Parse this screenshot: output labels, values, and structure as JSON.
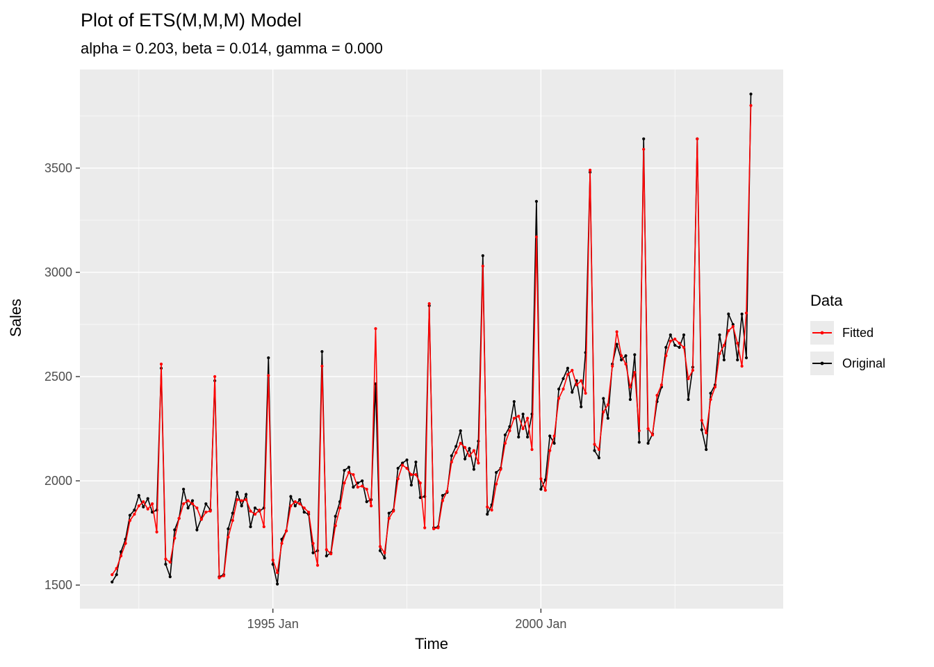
{
  "title": "Plot of ETS(M,M,M) Model",
  "subtitle": "alpha = 0.203, beta = 0.014, gamma = 0.000",
  "axes": {
    "x_label": "Time",
    "y_label": "Sales"
  },
  "legend": {
    "title": "Data",
    "entries": [
      {
        "label": "Fitted",
        "color": "#FF0000"
      },
      {
        "label": "Original",
        "color": "#000000"
      }
    ]
  },
  "colors": {
    "panel": "#EBEBEB",
    "grid": "#FFFFFF",
    "tick_text": "#4D4D4D",
    "tick_mark": "#333333",
    "fitted": "#FF0000",
    "original": "#000000",
    "legend_key": "#EBEBEB"
  },
  "chart_data": {
    "type": "line",
    "title": "Plot of ETS(M,M,M) Model",
    "subtitle": "alpha = 0.203, beta = 0.014, gamma = 0.000",
    "xlabel": "Time",
    "ylabel": "Sales",
    "x_description": "Monthly observations from Jan 1992 to Dec 2003, strong December seasonal peaks",
    "x_start_year": 1992,
    "frequency": "monthly",
    "xlim": [
      1991.4,
      2004.52
    ],
    "ylim": [
      1387,
      3973
    ],
    "x_ticks": [
      {
        "pos": 1995.0,
        "label": "1995 Jan"
      },
      {
        "pos": 2000.0,
        "label": "2000 Jan"
      }
    ],
    "x_minor": [
      1992.5,
      1997.5,
      2002.5
    ],
    "y_ticks": [
      1500,
      2000,
      2500,
      3000,
      3500
    ],
    "y_minor": [
      1750,
      2250,
      2750,
      3250,
      3750
    ],
    "grid": true,
    "legend_position": "right",
    "series": [
      {
        "name": "Fitted",
        "color": "#FF0000",
        "values": [
          1550,
          1580,
          1640,
          1700,
          1810,
          1840,
          1880,
          1900,
          1865,
          1890,
          1755,
          2560,
          1625,
          1610,
          1725,
          1820,
          1890,
          1905,
          1890,
          1870,
          1815,
          1850,
          1855,
          2500,
          1535,
          1545,
          1730,
          1810,
          1910,
          1905,
          1910,
          1855,
          1840,
          1860,
          1780,
          2505,
          1620,
          1560,
          1700,
          1760,
          1880,
          1900,
          1890,
          1870,
          1850,
          1700,
          1595,
          2550,
          1670,
          1650,
          1785,
          1870,
          1990,
          2040,
          2030,
          1970,
          1975,
          1960,
          1880,
          2730,
          1685,
          1655,
          1820,
          1855,
          2010,
          2075,
          2060,
          2030,
          2030,
          1990,
          1775,
          2850,
          1770,
          1775,
          1905,
          1950,
          2090,
          2135,
          2180,
          2160,
          2120,
          2145,
          2085,
          3030,
          1875,
          1860,
          1985,
          2055,
          2180,
          2240,
          2300,
          2310,
          2250,
          2300,
          2150,
          3170,
          2010,
          1955,
          2145,
          2215,
          2395,
          2440,
          2510,
          2530,
          2460,
          2480,
          2420,
          3490,
          2175,
          2150,
          2330,
          2365,
          2550,
          2715,
          2600,
          2560,
          2450,
          2520,
          2240,
          3590,
          2250,
          2220,
          2410,
          2460,
          2600,
          2670,
          2680,
          2660,
          2640,
          2490,
          2530,
          3640,
          2290,
          2230,
          2390,
          2450,
          2610,
          2650,
          2720,
          2740,
          2660,
          2550,
          2805,
          3800
        ]
      },
      {
        "name": "Original",
        "color": "#000000",
        "values": [
          1515,
          1550,
          1660,
          1720,
          1835,
          1860,
          1930,
          1875,
          1915,
          1850,
          1860,
          2540,
          1600,
          1540,
          1765,
          1820,
          1960,
          1870,
          1905,
          1765,
          1820,
          1890,
          1860,
          2480,
          1540,
          1550,
          1770,
          1845,
          1945,
          1880,
          1935,
          1780,
          1870,
          1855,
          1870,
          2590,
          1600,
          1505,
          1720,
          1760,
          1925,
          1880,
          1910,
          1850,
          1840,
          1655,
          1665,
          2620,
          1640,
          1655,
          1830,
          1900,
          2050,
          2065,
          1970,
          1990,
          2000,
          1900,
          1910,
          2465,
          1665,
          1630,
          1845,
          1860,
          2060,
          2085,
          2100,
          1980,
          2090,
          1920,
          1925,
          2840,
          1775,
          1780,
          1930,
          1945,
          2120,
          2165,
          2240,
          2105,
          2155,
          2055,
          2190,
          3080,
          1840,
          1885,
          2040,
          2060,
          2220,
          2260,
          2380,
          2210,
          2320,
          2210,
          2320,
          3340,
          1960,
          2005,
          2215,
          2180,
          2440,
          2490,
          2540,
          2425,
          2480,
          2355,
          2615,
          3480,
          2145,
          2110,
          2395,
          2300,
          2560,
          2655,
          2580,
          2600,
          2390,
          2605,
          2185,
          3640,
          2180,
          2225,
          2380,
          2450,
          2640,
          2700,
          2650,
          2640,
          2700,
          2390,
          2545,
          3640,
          2245,
          2150,
          2420,
          2460,
          2700,
          2580,
          2800,
          2750,
          2580,
          2800,
          2590,
          3855
        ]
      }
    ]
  }
}
